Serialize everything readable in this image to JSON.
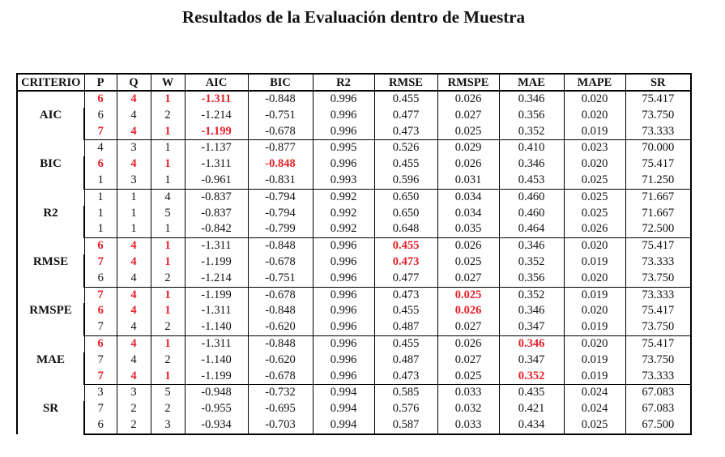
{
  "title": "Resultados de la Evaluación dentro de Muestra",
  "columns": [
    "CRITERIO",
    "P",
    "Q",
    "W",
    "AIC",
    "BIC",
    "R2",
    "RMSE",
    "RMSPE",
    "MAE",
    "MAPE",
    "SR"
  ],
  "highlight_color": "#e8202a",
  "groups": [
    {
      "criterio": "AIC",
      "rows": [
        {
          "values": [
            "6",
            "4",
            "1",
            "-1.311",
            "-0.848",
            "0.996",
            "0.455",
            "0.026",
            "0.346",
            "0.020",
            "75.417"
          ],
          "red": [
            0,
            1,
            2,
            3
          ]
        },
        {
          "values": [
            "6",
            "4",
            "2",
            "-1.214",
            "-0.751",
            "0.996",
            "0.477",
            "0.027",
            "0.356",
            "0.020",
            "73.750"
          ],
          "red": []
        },
        {
          "values": [
            "7",
            "4",
            "1",
            "-1.199",
            "-0.678",
            "0.996",
            "0.473",
            "0.025",
            "0.352",
            "0.019",
            "73.333"
          ],
          "red": [
            0,
            1,
            2,
            3
          ]
        }
      ]
    },
    {
      "criterio": "BIC",
      "rows": [
        {
          "values": [
            "4",
            "3",
            "1",
            "-1.137",
            "-0.877",
            "0.995",
            "0.526",
            "0.029",
            "0.410",
            "0.023",
            "70.000"
          ],
          "red": []
        },
        {
          "values": [
            "6",
            "4",
            "1",
            "-1.311",
            "-0.848",
            "0.996",
            "0.455",
            "0.026",
            "0.346",
            "0.020",
            "75.417"
          ],
          "red": [
            0,
            1,
            2,
            4
          ]
        },
        {
          "values": [
            "1",
            "3",
            "1",
            "-0.961",
            "-0.831",
            "0.993",
            "0.596",
            "0.031",
            "0.453",
            "0.025",
            "71.250"
          ],
          "red": []
        }
      ]
    },
    {
      "criterio": "R2",
      "rows": [
        {
          "values": [
            "1",
            "1",
            "4",
            "-0.837",
            "-0.794",
            "0.992",
            "0.650",
            "0.034",
            "0.460",
            "0.025",
            "71.667"
          ],
          "red": []
        },
        {
          "values": [
            "1",
            "1",
            "5",
            "-0.837",
            "-0.794",
            "0.992",
            "0.650",
            "0.034",
            "0.460",
            "0.025",
            "71.667"
          ],
          "red": []
        },
        {
          "values": [
            "1",
            "1",
            "1",
            "-0.842",
            "-0.799",
            "0.992",
            "0.648",
            "0.035",
            "0.464",
            "0.026",
            "72.500"
          ],
          "red": []
        }
      ]
    },
    {
      "criterio": "RMSE",
      "rows": [
        {
          "values": [
            "6",
            "4",
            "1",
            "-1.311",
            "-0.848",
            "0.996",
            "0.455",
            "0.026",
            "0.346",
            "0.020",
            "75.417"
          ],
          "red": [
            0,
            1,
            2,
            6
          ]
        },
        {
          "values": [
            "7",
            "4",
            "1",
            "-1.199",
            "-0.678",
            "0.996",
            "0.473",
            "0.025",
            "0.352",
            "0.019",
            "73.333"
          ],
          "red": [
            0,
            1,
            2,
            6
          ]
        },
        {
          "values": [
            "6",
            "4",
            "2",
            "-1.214",
            "-0.751",
            "0.996",
            "0.477",
            "0.027",
            "0.356",
            "0.020",
            "73.750"
          ],
          "red": []
        }
      ]
    },
    {
      "criterio": "RMSPE",
      "rows": [
        {
          "values": [
            "7",
            "4",
            "1",
            "-1.199",
            "-0.678",
            "0.996",
            "0.473",
            "0.025",
            "0.352",
            "0.019",
            "73.333"
          ],
          "red": [
            0,
            1,
            2,
            7
          ]
        },
        {
          "values": [
            "6",
            "4",
            "1",
            "-1.311",
            "-0.848",
            "0.996",
            "0.455",
            "0.026",
            "0.346",
            "0.020",
            "75.417"
          ],
          "red": [
            0,
            1,
            2,
            7
          ]
        },
        {
          "values": [
            "7",
            "4",
            "2",
            "-1.140",
            "-0.620",
            "0.996",
            "0.487",
            "0.027",
            "0.347",
            "0.019",
            "73.750"
          ],
          "red": []
        }
      ]
    },
    {
      "criterio": "MAE",
      "rows": [
        {
          "values": [
            "6",
            "4",
            "1",
            "-1.311",
            "-0.848",
            "0.996",
            "0.455",
            "0.026",
            "0.346",
            "0.020",
            "75.417"
          ],
          "red": [
            0,
            1,
            2,
            8
          ]
        },
        {
          "values": [
            "7",
            "4",
            "2",
            "-1.140",
            "-0.620",
            "0.996",
            "0.487",
            "0.027",
            "0.347",
            "0.019",
            "73.750"
          ],
          "red": []
        },
        {
          "values": [
            "7",
            "4",
            "1",
            "-1.199",
            "-0.678",
            "0.996",
            "0.473",
            "0.025",
            "0.352",
            "0.019",
            "73.333"
          ],
          "red": [
            0,
            1,
            2,
            8
          ]
        }
      ]
    },
    {
      "criterio": "SR",
      "rows": [
        {
          "values": [
            "3",
            "3",
            "5",
            "-0.948",
            "-0.732",
            "0.994",
            "0.585",
            "0.033",
            "0.435",
            "0.024",
            "67.083"
          ],
          "red": []
        },
        {
          "values": [
            "7",
            "2",
            "2",
            "-0.955",
            "-0.695",
            "0.994",
            "0.576",
            "0.032",
            "0.421",
            "0.024",
            "67.083"
          ],
          "red": []
        },
        {
          "values": [
            "6",
            "2",
            "3",
            "-0.934",
            "-0.703",
            "0.994",
            "0.587",
            "0.033",
            "0.434",
            "0.025",
            "67.500"
          ],
          "red": []
        }
      ]
    }
  ]
}
